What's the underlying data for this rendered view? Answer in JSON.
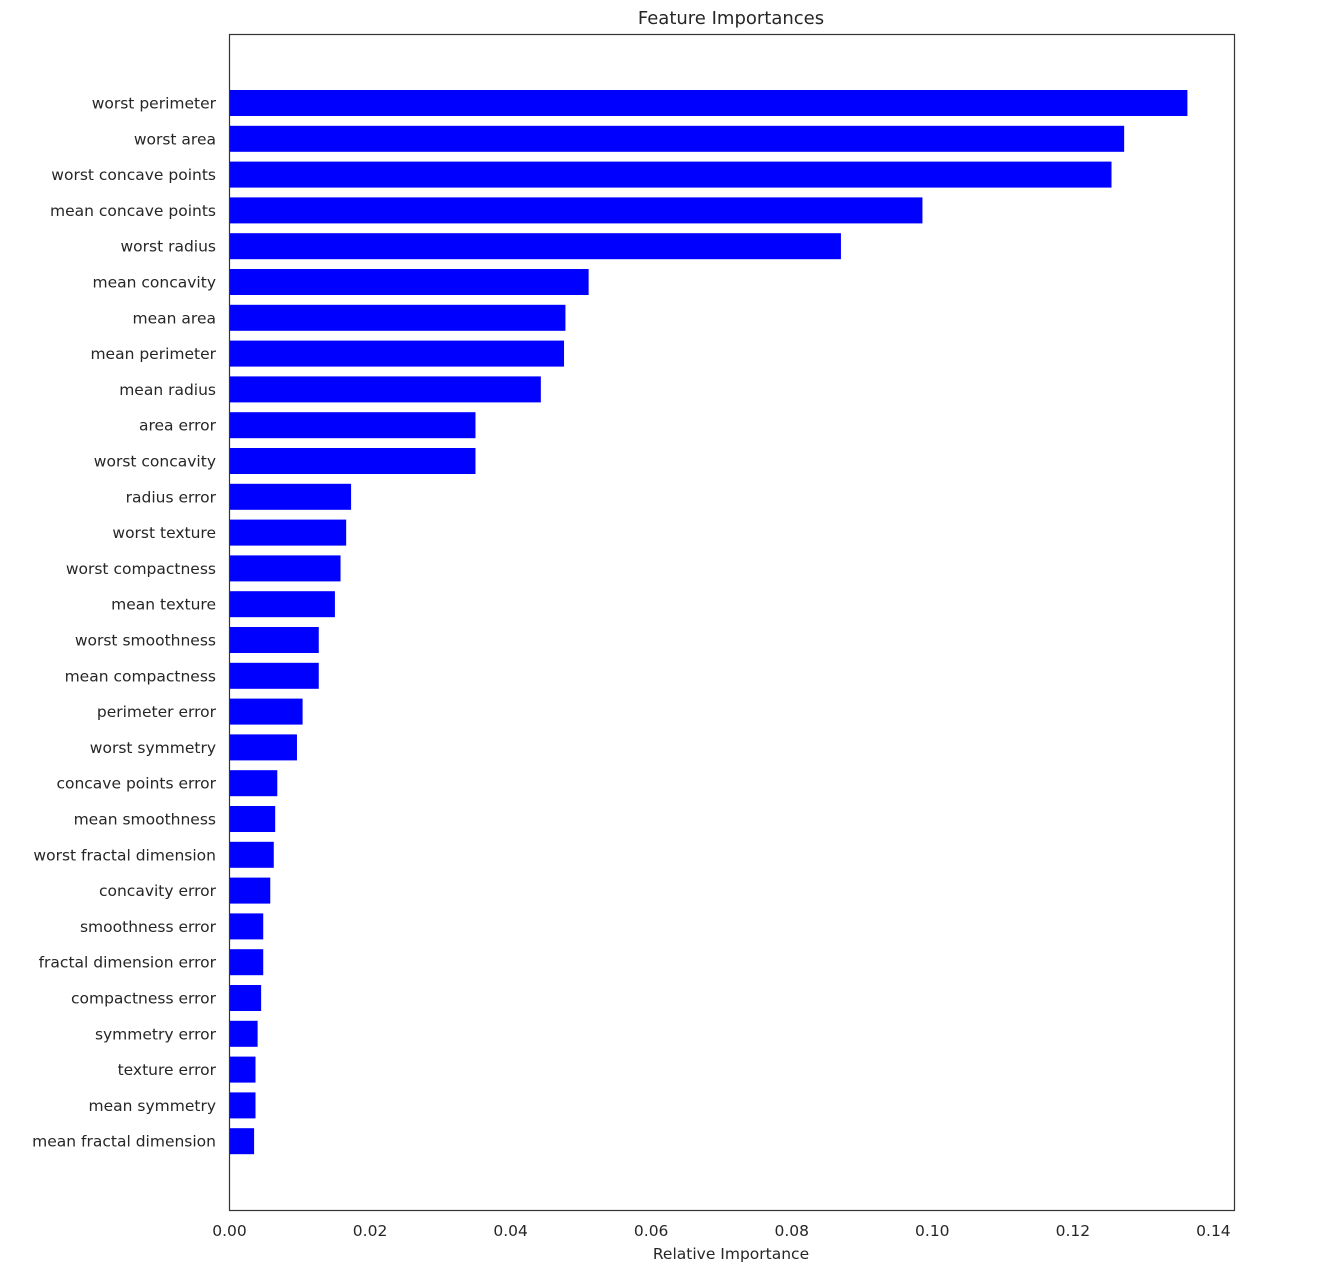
{
  "chart_data": {
    "type": "bar",
    "orientation": "horizontal",
    "title": "Feature Importances",
    "xlabel": "Relative Importance",
    "ylabel": "",
    "xlim": [
      0,
      0.143
    ],
    "xticks": [
      0.0,
      0.02,
      0.04,
      0.06,
      0.08,
      0.1,
      0.12,
      0.14
    ],
    "xtick_labels": [
      "0.00",
      "0.02",
      "0.04",
      "0.06",
      "0.08",
      "0.10",
      "0.12",
      "0.14"
    ],
    "grid": false,
    "bar_color": "#0000ff",
    "categories": [
      "worst perimeter",
      "worst area",
      "worst concave points",
      "mean concave points",
      "worst radius",
      "mean concavity",
      "mean area",
      "mean perimeter",
      "mean radius",
      "area error",
      "worst concavity",
      "radius error",
      "worst texture",
      "worst compactness",
      "mean texture",
      "worst smoothness",
      "mean compactness",
      "perimeter error",
      "worst symmetry",
      "concave points error",
      "mean smoothness",
      "worst fractal dimension",
      "concavity error",
      "smoothness error",
      "fractal dimension error",
      "compactness error",
      "symmetry error",
      "texture error",
      "mean symmetry",
      "mean fractal dimension"
    ],
    "values": [
      0.1363,
      0.1273,
      0.1255,
      0.0986,
      0.087,
      0.0511,
      0.0478,
      0.0476,
      0.0443,
      0.035,
      0.035,
      0.0173,
      0.0166,
      0.0158,
      0.015,
      0.0127,
      0.0127,
      0.0104,
      0.0096,
      0.0068,
      0.0065,
      0.0063,
      0.0058,
      0.0048,
      0.0048,
      0.0045,
      0.004,
      0.0037,
      0.0037,
      0.0035
    ]
  }
}
